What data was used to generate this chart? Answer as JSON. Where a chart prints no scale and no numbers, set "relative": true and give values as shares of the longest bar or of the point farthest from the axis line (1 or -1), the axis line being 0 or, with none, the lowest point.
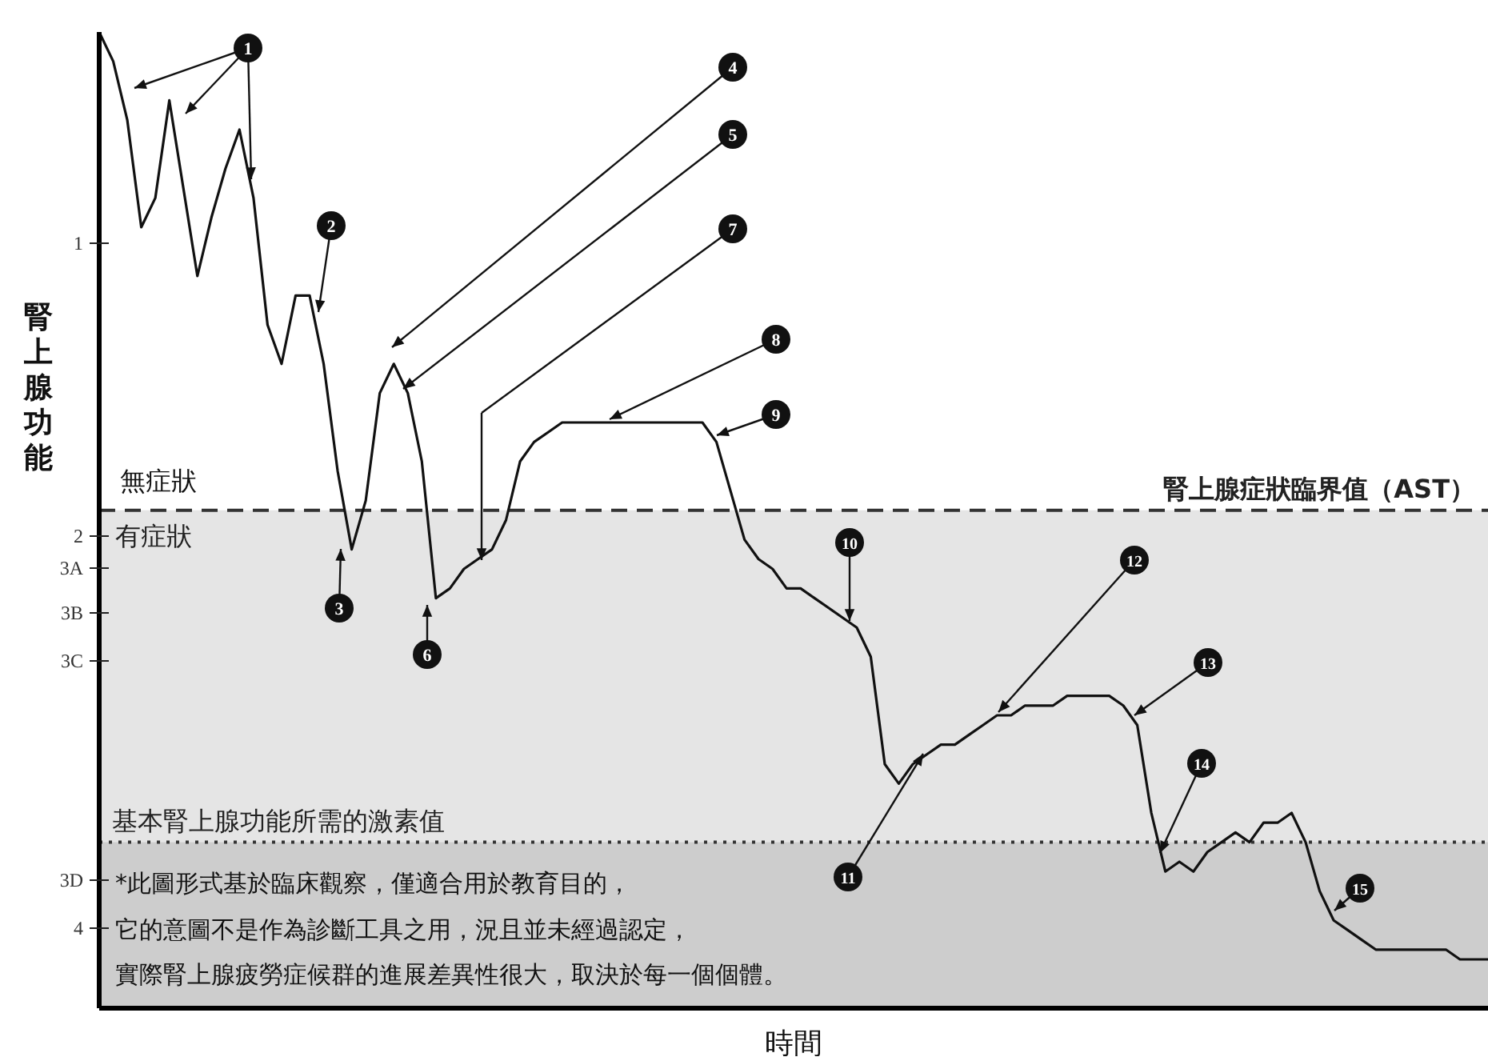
{
  "chart_data": {
    "type": "line",
    "relative": true,
    "xlabel": "時間",
    "ylabel": "腎上腺功能",
    "categories": [
      null,
      null,
      null,
      null,
      null,
      null,
      null,
      null,
      null,
      null,
      null,
      null,
      null,
      null,
      null,
      null,
      null,
      null,
      null,
      null,
      null,
      null,
      null,
      null,
      null,
      null,
      null,
      null,
      null,
      null,
      null,
      null,
      null,
      null,
      null,
      null,
      null,
      null,
      null,
      null,
      null,
      null,
      null,
      null,
      null,
      null,
      null,
      null,
      null,
      null,
      null,
      null,
      null,
      null,
      null,
      null,
      null,
      null,
      null,
      null,
      null,
      null,
      null,
      null,
      null,
      null,
      null,
      null,
      null,
      null,
      null,
      null,
      null,
      null,
      null,
      null,
      null,
      null,
      null,
      null,
      null,
      null,
      null,
      null,
      null,
      null,
      null,
      null,
      null,
      null,
      null,
      null,
      null,
      null,
      null,
      null,
      null,
      null,
      null,
      null
    ],
    "grid": false,
    "legend": false,
    "marker": "none",
    "line_style": "solid",
    "series": [
      {
        "color": "#111111",
        "values": [
          1.0,
          0.97,
          0.91,
          0.8,
          0.83,
          0.93,
          0.84,
          0.75,
          0.81,
          0.86,
          0.9,
          0.83,
          0.7,
          0.66,
          0.73,
          0.73,
          0.66,
          0.55,
          0.47,
          0.52,
          0.63,
          0.66,
          0.63,
          0.56,
          0.42,
          0.43,
          0.45,
          0.46,
          0.47,
          0.5,
          0.56,
          0.58,
          0.59,
          0.6,
          0.6,
          0.6,
          0.6,
          0.6,
          0.6,
          0.6,
          0.6,
          0.6,
          0.6,
          0.6,
          0.58,
          0.53,
          0.48,
          0.46,
          0.45,
          0.43,
          0.43,
          0.42,
          0.41,
          0.4,
          0.39,
          0.36,
          0.25,
          0.23,
          0.25,
          0.26,
          0.27,
          0.27,
          0.28,
          0.29,
          0.3,
          0.3,
          0.31,
          0.31,
          0.31,
          0.32,
          0.32,
          0.32,
          0.32,
          0.31,
          0.29,
          0.2,
          0.14,
          0.15,
          0.14,
          0.16,
          0.17,
          0.18,
          0.17,
          0.19,
          0.19,
          0.2,
          0.17,
          0.12,
          0.09,
          0.08,
          0.07,
          0.06,
          0.06,
          0.06,
          0.06,
          0.06,
          0.06,
          0.05,
          0.05,
          0.05
        ]
      }
    ],
    "ref_lines": [
      {
        "axis": "y",
        "value": 0.51,
        "label": "腎上腺症狀臨界值（AST）",
        "color": "#333333",
        "line_style": "dashed"
      },
      {
        "axis": "y",
        "value": 0.17,
        "label": "基本腎上腺功能所需的激素值",
        "color": "#333333",
        "line_style": "dotted"
      }
    ],
    "bands": [
      {
        "axis": "y",
        "from": 0.17,
        "to": 0.51,
        "label": "有症狀",
        "color": "#cbcbcb"
      },
      {
        "axis": "y",
        "from": 0,
        "to": 0.17,
        "color": "#9c9c9c"
      }
    ],
    "annotations": [
      "1",
      "2",
      "3A",
      "3B",
      "3C",
      "3D",
      "4",
      "無症狀",
      "*此圖形式基於臨床觀察，僅適合用於教育目的，",
      "它的意圖不是作為診斷工具之用，況且並未經過認定，",
      "實際腎上腺疲勞症候群的進展差異性很大，取決於每一個個體。",
      "1",
      "2",
      "3",
      "4",
      "5",
      "6",
      "7",
      "8",
      "9",
      "10",
      "11",
      "12",
      "13",
      "14",
      "15"
    ]
  }
}
